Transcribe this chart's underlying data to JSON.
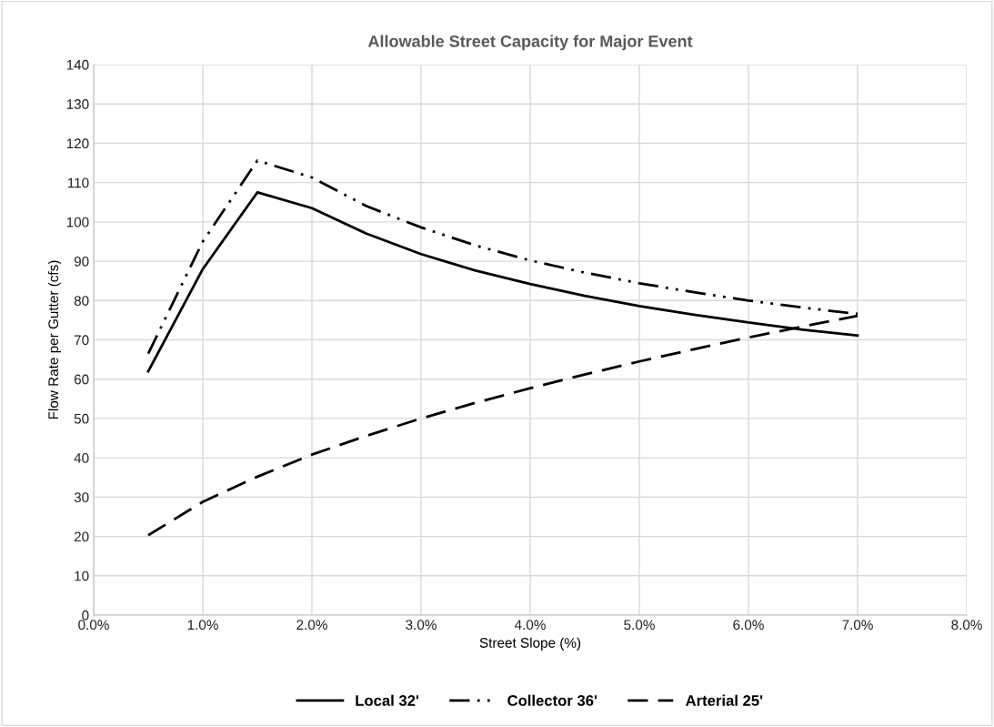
{
  "chart_data": {
    "type": "line",
    "title": "Allowable Street Capacity for Major Event",
    "xlabel": "Street Slope (%)",
    "ylabel": "Flow Rate per Gutter (cfs)",
    "x": [
      0.5,
      1.0,
      1.5,
      2.0,
      2.5,
      3.0,
      3.5,
      4.0,
      4.5,
      5.0,
      5.5,
      6.0,
      6.5,
      7.0
    ],
    "series": [
      {
        "name": "Local 32'",
        "color": "#000000",
        "line_style": "solid",
        "values": [
          62,
          88,
          107.5,
          103.5,
          97,
          91.8,
          87.6,
          84.2,
          81.2,
          78.6,
          76.4,
          74.4,
          72.6,
          71.1
        ]
      },
      {
        "name": "Collector 36'",
        "color": "#000000",
        "line_style": "dashdotdot",
        "values": [
          66.5,
          95,
          115.6,
          111.3,
          104,
          98.6,
          94.0,
          90.2,
          87.1,
          84.4,
          82.1,
          80.0,
          78.2,
          76.6
        ]
      },
      {
        "name": "Arterial 25'",
        "color": "#000000",
        "line_style": "dashed",
        "values": [
          20.3,
          28.8,
          35.2,
          40.8,
          45.6,
          50.0,
          54.0,
          57.7,
          61.2,
          64.5,
          67.6,
          70.6,
          73.4,
          76.1
        ]
      }
    ],
    "xlim": [
      0,
      8
    ],
    "xticks": [
      {
        "value": 0,
        "label": "0.0%"
      },
      {
        "value": 1,
        "label": "1.0%"
      },
      {
        "value": 2,
        "label": "2.0%"
      },
      {
        "value": 3,
        "label": "3.0%"
      },
      {
        "value": 4,
        "label": "4.0%"
      },
      {
        "value": 5,
        "label": "5.0%"
      },
      {
        "value": 6,
        "label": "6.0%"
      },
      {
        "value": 7,
        "label": "7.0%"
      },
      {
        "value": 8,
        "label": "8.0%"
      }
    ],
    "ylim": [
      0,
      140
    ],
    "yticks": [
      0,
      10,
      20,
      30,
      40,
      50,
      60,
      70,
      80,
      90,
      100,
      110,
      120,
      130,
      140
    ],
    "grid": true,
    "legend": "bottom",
    "marker": "none"
  }
}
